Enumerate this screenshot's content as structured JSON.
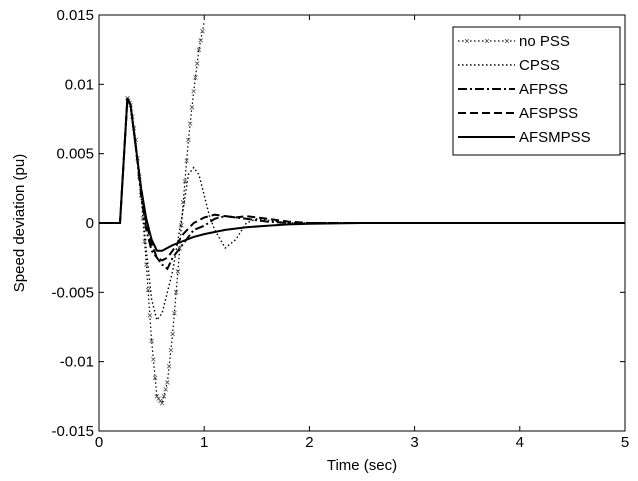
{
  "chart_data": {
    "type": "line",
    "xlabel": "Time (sec)",
    "ylabel": "Speed deviation (pu)",
    "xlim": [
      0,
      5
    ],
    "ylim": [
      -0.015,
      0.015
    ],
    "x_ticks": [
      0,
      1,
      2,
      3,
      4,
      5
    ],
    "x_tick_labels": [
      "0",
      "1",
      "2",
      "3",
      "4",
      "5"
    ],
    "y_ticks": [
      -0.015,
      -0.01,
      -0.005,
      0,
      0.005,
      0.01,
      0.015
    ],
    "y_tick_labels": [
      "-0.015",
      "-0.01",
      "-0.005",
      "0",
      "0.005",
      "0.01",
      "0.015"
    ],
    "grid": false,
    "legend_position": "top-right",
    "series": [
      {
        "name": "no PSS",
        "style": "dotted-x",
        "x": [
          0,
          0.2,
          0.27,
          0.3,
          0.35,
          0.4,
          0.45,
          0.5,
          0.55,
          0.6,
          0.65,
          0.7,
          0.75,
          0.8,
          0.85,
          0.9,
          0.95,
          1.0
        ],
        "y": [
          0,
          0,
          0.009,
          0.0085,
          0.006,
          0.002,
          -0.003,
          -0.0085,
          -0.0125,
          -0.013,
          -0.0115,
          -0.008,
          -0.0035,
          0.0015,
          0.006,
          0.0095,
          0.0125,
          0.0145
        ]
      },
      {
        "name": "CPSS",
        "style": "dotted",
        "x": [
          0,
          0.2,
          0.27,
          0.3,
          0.35,
          0.4,
          0.45,
          0.5,
          0.55,
          0.6,
          0.7,
          0.8,
          0.85,
          0.9,
          0.95,
          1.0,
          1.05,
          1.1,
          1.2,
          1.3,
          1.4,
          1.5,
          1.6,
          1.8,
          2.0,
          2.5,
          5.0
        ],
        "y": [
          0,
          0,
          0.009,
          0.0085,
          0.0055,
          0.002,
          -0.002,
          -0.0055,
          -0.007,
          -0.0065,
          -0.0035,
          0.001,
          0.0035,
          0.004,
          0.0035,
          0.002,
          0.0005,
          -0.0005,
          -0.0018,
          -0.0012,
          0,
          0.0003,
          0.0002,
          0,
          0,
          0,
          0
        ]
      },
      {
        "name": "AFPSS",
        "style": "dashdot",
        "x": [
          0,
          0.2,
          0.27,
          0.3,
          0.35,
          0.4,
          0.45,
          0.5,
          0.55,
          0.6,
          0.65,
          0.7,
          0.8,
          0.9,
          1.0,
          1.1,
          1.2,
          1.3,
          1.4,
          1.5,
          1.6,
          1.8,
          2.0,
          2.5,
          5.0
        ],
        "y": [
          0,
          0,
          0.009,
          0.0085,
          0.0055,
          0.002,
          -0.0005,
          -0.002,
          -0.0025,
          -0.003,
          -0.0033,
          -0.0025,
          -0.0015,
          -0.0005,
          -0.0002,
          0.0003,
          0.0005,
          0.0004,
          0.0003,
          0.0002,
          0.0001,
          0,
          0,
          0,
          0
        ]
      },
      {
        "name": "AFSPSS",
        "style": "dashed",
        "x": [
          0,
          0.2,
          0.27,
          0.3,
          0.35,
          0.4,
          0.45,
          0.5,
          0.55,
          0.6,
          0.65,
          0.7,
          0.8,
          0.9,
          1.0,
          1.1,
          1.2,
          1.3,
          1.4,
          1.5,
          1.6,
          1.8,
          2.0,
          2.5,
          5.0
        ],
        "y": [
          0,
          0,
          0.009,
          0.0085,
          0.0055,
          0.0025,
          0,
          -0.0015,
          -0.0025,
          -0.0027,
          -0.0025,
          -0.002,
          -0.0008,
          0,
          0.0004,
          0.0006,
          0.0005,
          0.0004,
          0.0005,
          0.0004,
          0.0003,
          0.0001,
          0,
          0,
          0
        ]
      },
      {
        "name": "AFSMPSS",
        "style": "solid",
        "x": [
          0,
          0.2,
          0.27,
          0.3,
          0.35,
          0.4,
          0.45,
          0.5,
          0.55,
          0.6,
          0.7,
          0.8,
          0.9,
          1.0,
          1.2,
          1.4,
          1.6,
          1.8,
          2.0,
          2.5,
          3.0,
          5.0
        ],
        "y": [
          0,
          0,
          0.009,
          0.0085,
          0.0055,
          0.0025,
          0.0003,
          -0.0012,
          -0.002,
          -0.002,
          -0.0016,
          -0.0013,
          -0.001,
          -0.0008,
          -0.0005,
          -0.0003,
          -0.0002,
          -0.0001,
          -5e-05,
          0,
          0,
          0
        ]
      }
    ]
  }
}
